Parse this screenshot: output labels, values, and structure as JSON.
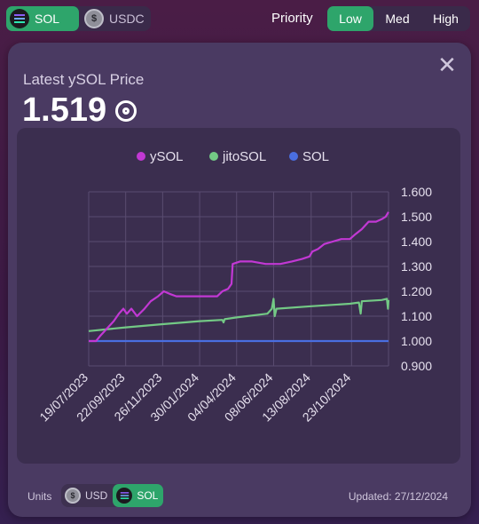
{
  "token_toggle": {
    "options": [
      {
        "label": "SOL",
        "icon": "solana-icon",
        "active": true
      },
      {
        "label": "USDC",
        "icon": "usd-coin-icon",
        "active": false
      }
    ]
  },
  "priority": {
    "label": "Priority",
    "options": [
      {
        "label": "Low",
        "active": true
      },
      {
        "label": "Med",
        "active": false
      },
      {
        "label": "High",
        "active": false
      }
    ]
  },
  "card": {
    "title": "Latest ySOL Price",
    "price": "1.519",
    "price_icon": "sol-ring-icon",
    "close_icon": "close-icon"
  },
  "footer": {
    "units_label": "Units",
    "units_options": [
      {
        "label": "USD",
        "icon": "usd-coin-icon",
        "active": false
      },
      {
        "label": "SOL",
        "icon": "solana-icon",
        "active": true
      }
    ],
    "updated": "Updated: 27/12/2024"
  },
  "colors": {
    "accent_green": "#2ea56b",
    "ysol": "#c238d4",
    "jitosol": "#73c985",
    "sol": "#4a6ee0"
  },
  "chart_data": {
    "type": "line",
    "legend": [
      "ySOL",
      "jitoSOL",
      "SOL"
    ],
    "legend_position": "top",
    "y_axis_position": "right",
    "ylim": [
      0.9,
      1.6
    ],
    "yticks": [
      "0.900",
      "1.000",
      "1.100",
      "1.200",
      "1.300",
      "1.400",
      "1.500",
      "1.600"
    ],
    "xlim": [
      "2023-07-19",
      "2024-12-27"
    ],
    "xticks": [
      "19/07/2023",
      "22/09/2023",
      "26/11/2023",
      "30/01/2024",
      "04/04/2024",
      "08/06/2024",
      "13/08/2024",
      "23/10/2024"
    ],
    "grid": true,
    "series": [
      {
        "name": "ySOL",
        "color": "#c238d4",
        "points": [
          [
            "2023-07-19",
            1.0
          ],
          [
            "2023-08-01",
            1.0
          ],
          [
            "2023-08-08",
            1.02
          ],
          [
            "2023-08-20",
            1.05
          ],
          [
            "2023-09-01",
            1.08
          ],
          [
            "2023-09-10",
            1.11
          ],
          [
            "2023-09-18",
            1.13
          ],
          [
            "2023-09-24",
            1.11
          ],
          [
            "2023-10-02",
            1.13
          ],
          [
            "2023-10-12",
            1.1
          ],
          [
            "2023-10-25",
            1.13
          ],
          [
            "2023-11-05",
            1.16
          ],
          [
            "2023-11-18",
            1.18
          ],
          [
            "2023-11-28",
            1.2
          ],
          [
            "2023-12-08",
            1.19
          ],
          [
            "2023-12-20",
            1.18
          ],
          [
            "2024-01-10",
            1.18
          ],
          [
            "2024-02-05",
            1.18
          ],
          [
            "2024-03-01",
            1.18
          ],
          [
            "2024-03-10",
            1.2
          ],
          [
            "2024-03-20",
            1.21
          ],
          [
            "2024-03-26",
            1.23
          ],
          [
            "2024-03-28",
            1.31
          ],
          [
            "2024-04-10",
            1.32
          ],
          [
            "2024-05-01",
            1.32
          ],
          [
            "2024-05-25",
            1.31
          ],
          [
            "2024-06-20",
            1.31
          ],
          [
            "2024-07-10",
            1.32
          ],
          [
            "2024-07-28",
            1.33
          ],
          [
            "2024-08-10",
            1.34
          ],
          [
            "2024-08-15",
            1.36
          ],
          [
            "2024-08-25",
            1.37
          ],
          [
            "2024-09-05",
            1.39
          ],
          [
            "2024-09-20",
            1.4
          ],
          [
            "2024-10-05",
            1.41
          ],
          [
            "2024-10-20",
            1.41
          ],
          [
            "2024-10-30",
            1.43
          ],
          [
            "2024-11-10",
            1.45
          ],
          [
            "2024-11-22",
            1.48
          ],
          [
            "2024-12-05",
            1.48
          ],
          [
            "2024-12-15",
            1.49
          ],
          [
            "2024-12-22",
            1.5
          ],
          [
            "2024-12-27",
            1.519
          ]
        ]
      },
      {
        "name": "jitoSOL",
        "color": "#73c985",
        "points": [
          [
            "2023-07-19",
            1.04
          ],
          [
            "2023-09-22",
            1.055
          ],
          [
            "2023-11-26",
            1.068
          ],
          [
            "2024-01-30",
            1.08
          ],
          [
            "2024-03-10",
            1.085
          ],
          [
            "2024-03-12",
            1.075
          ],
          [
            "2024-03-14",
            1.088
          ],
          [
            "2024-04-04",
            1.095
          ],
          [
            "2024-05-28",
            1.11
          ],
          [
            "2024-06-05",
            1.13
          ],
          [
            "2024-06-08",
            1.17
          ],
          [
            "2024-06-10",
            1.1
          ],
          [
            "2024-06-13",
            1.13
          ],
          [
            "2024-08-13",
            1.14
          ],
          [
            "2024-10-20",
            1.15
          ],
          [
            "2024-11-05",
            1.155
          ],
          [
            "2024-11-08",
            1.11
          ],
          [
            "2024-11-10",
            1.16
          ],
          [
            "2024-12-15",
            1.165
          ],
          [
            "2024-12-24",
            1.17
          ],
          [
            "2024-12-26",
            1.13
          ],
          [
            "2024-12-27",
            1.165
          ]
        ]
      },
      {
        "name": "SOL",
        "color": "#4a6ee0",
        "points": [
          [
            "2023-07-19",
            1.0
          ],
          [
            "2024-12-27",
            1.0
          ]
        ]
      }
    ]
  }
}
